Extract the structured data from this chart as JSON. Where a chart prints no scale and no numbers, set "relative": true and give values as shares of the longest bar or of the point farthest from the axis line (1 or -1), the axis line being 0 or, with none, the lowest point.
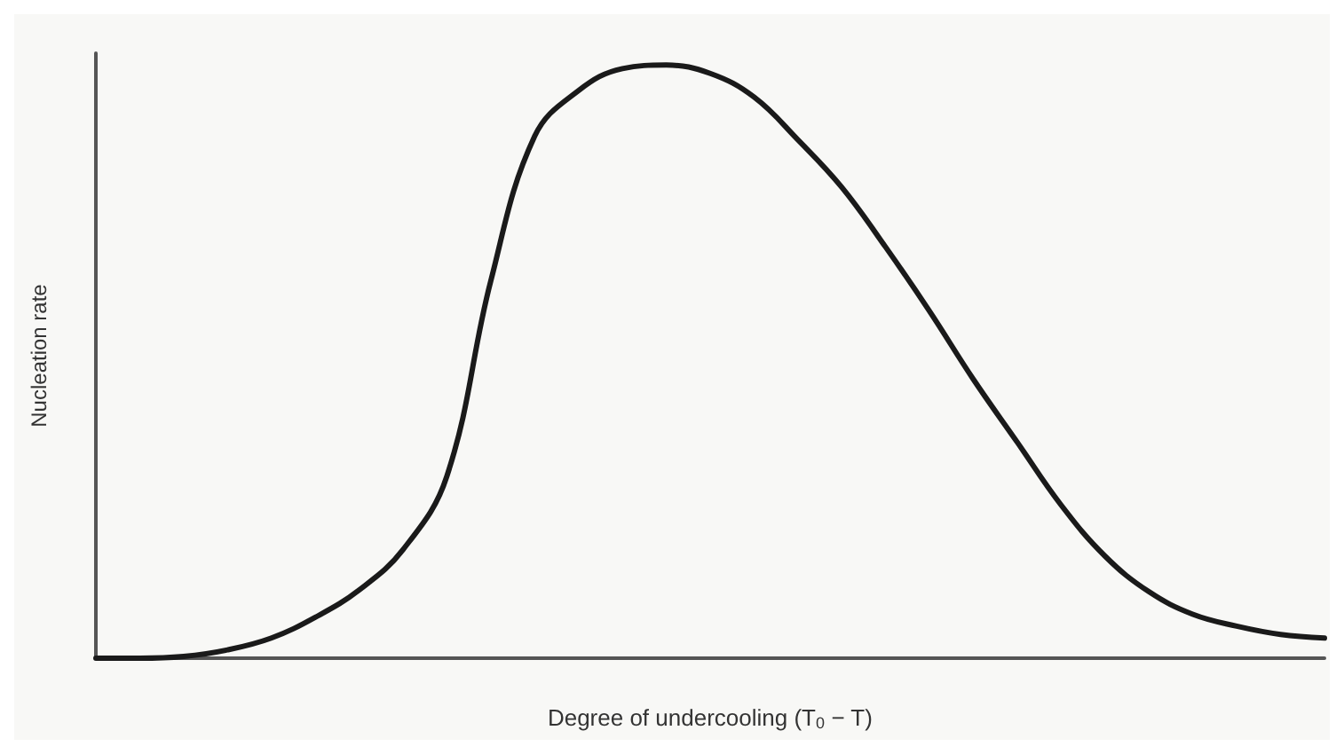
{
  "chart_data": {
    "type": "line",
    "xlabel": "Degree of undercooling (T$_{0}$ − T)",
    "ylabel": "Nucleation rate",
    "relative": true,
    "grid": false,
    "marker": "none",
    "line_style": "solid",
    "categories": [
      null,
      null,
      null,
      null,
      null,
      null,
      null,
      null,
      null,
      null,
      null,
      null,
      null,
      null,
      null,
      null,
      null,
      null,
      null,
      null,
      null,
      null,
      null,
      null,
      null,
      null,
      null,
      null,
      null
    ],
    "series": [
      {
        "color": "#1a1a1a",
        "values": [
          0,
          0,
          0.003,
          0.014,
          0.034,
          0.069,
          0.115,
          0.183,
          0.307,
          0.636,
          0.88,
          0.957,
          0.994,
          1,
          0.986,
          0.946,
          0.874,
          0.794,
          0.693,
          0.585,
          0.47,
          0.364,
          0.258,
          0.172,
          0.112,
          0.074,
          0.054,
          0.04,
          0.034
        ]
      }
    ]
  }
}
